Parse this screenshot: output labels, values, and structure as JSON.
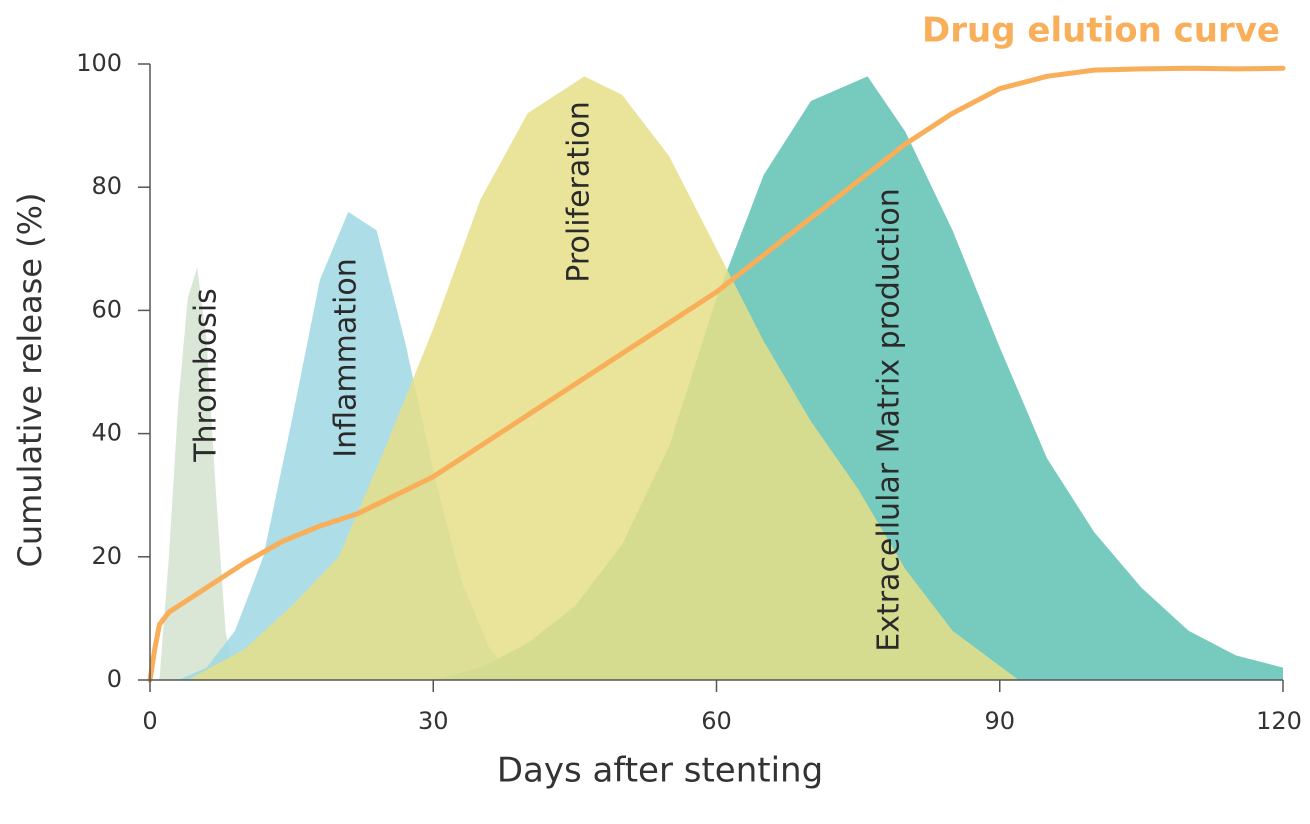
{
  "chart_data": {
    "type": "area",
    "xlabel": "Days after stenting",
    "ylabel": "Cumulative release (%)",
    "xlim": [
      0,
      120
    ],
    "xticks": [
      0,
      30,
      60,
      90,
      120
    ],
    "ylim": [
      0,
      100
    ],
    "yticks": [
      0,
      20,
      40,
      60,
      80,
      100
    ],
    "series": [
      {
        "name": "Thrombosis",
        "type": "area",
        "color": "#d3e2cf",
        "x": [
          1,
          2,
          3,
          4,
          5,
          6,
          7,
          8,
          9
        ],
        "values": [
          0,
          20,
          45,
          62,
          67,
          55,
          30,
          8,
          0
        ]
      },
      {
        "name": "Inflammation",
        "type": "area",
        "color": "#9fd8e3",
        "x": [
          3,
          6,
          9,
          12,
          15,
          18,
          21,
          24,
          27,
          30,
          33,
          36,
          39
        ],
        "values": [
          0,
          2,
          8,
          20,
          42,
          65,
          76,
          73,
          55,
          34,
          16,
          5,
          0
        ]
      },
      {
        "name": "Extracellular Matrix production",
        "type": "area",
        "color": "#5fc1b3",
        "x": [
          30,
          35,
          40,
          45,
          50,
          55,
          60,
          65,
          70,
          76,
          80,
          85,
          90,
          95,
          100,
          105,
          110,
          115,
          120
        ],
        "values": [
          0,
          2,
          6,
          12,
          22,
          38,
          62,
          82,
          94,
          98,
          89,
          73,
          54,
          36,
          24,
          15,
          8,
          4,
          2
        ]
      },
      {
        "name": "Proliferation",
        "type": "area",
        "color": "#e5df88",
        "x": [
          4,
          10,
          15,
          20,
          25,
          30,
          35,
          40,
          46,
          50,
          55,
          60,
          65,
          70,
          75,
          80,
          85,
          92
        ],
        "values": [
          0,
          5,
          12,
          20,
          38,
          57,
          78,
          92,
          98,
          95,
          85,
          70,
          55,
          42,
          31,
          18,
          8,
          0
        ]
      },
      {
        "name": "Drug elution curve",
        "type": "line",
        "color": "#f9ae5a",
        "x": [
          0,
          0.5,
          1,
          2,
          4,
          7,
          10,
          14,
          18,
          22,
          26,
          30,
          35,
          40,
          45,
          50,
          55,
          60,
          65,
          70,
          75,
          80,
          85,
          90,
          95,
          100,
          105,
          110,
          115,
          120
        ],
        "values": [
          0,
          5,
          9,
          11,
          13,
          16,
          19,
          22.5,
          25,
          27,
          30,
          33,
          38,
          43,
          48,
          53,
          58,
          63,
          69,
          75,
          81,
          87,
          92,
          96,
          98,
          99,
          99.2,
          99.3,
          99.2,
          99.3
        ]
      }
    ]
  }
}
